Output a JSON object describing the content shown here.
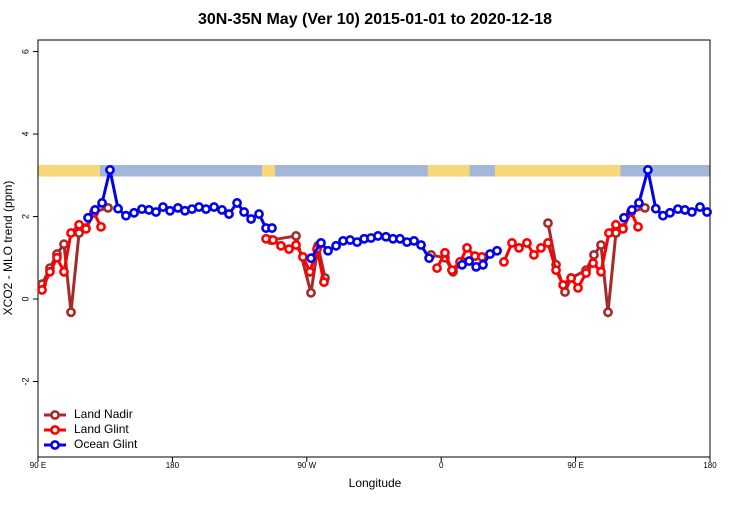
{
  "chart_data": {
    "type": "line",
    "title": "30N-35N May (Ver 10)   2015-01-01 to 2020-12-18",
    "xlabel": "Longitude",
    "ylabel": "XCO2 - MLO trend (ppm)",
    "xlim": [
      90,
      540
    ],
    "ylim": [
      -3.83,
      6.28
    ],
    "xticks": [
      {
        "value": 90,
        "label": "90 E"
      },
      {
        "value": 180,
        "label": "180"
      },
      {
        "value": 270,
        "label": "90 W"
      },
      {
        "value": 360,
        "label": "0"
      },
      {
        "value": 450,
        "label": "90 E"
      },
      {
        "value": 540,
        "label": "180"
      }
    ],
    "yticks": [
      -2,
      0,
      2,
      4,
      6
    ],
    "legend": "bottom-left",
    "surface_band": {
      "ylim": [
        2.97,
        3.25
      ],
      "land_color": "#f7d77a",
      "ocean_color": "#a5b7d8",
      "land": [
        [
          90,
          131.5
        ],
        [
          240,
          248.7
        ],
        [
          351,
          379
        ],
        [
          396,
          480
        ]
      ]
    },
    "series": [
      {
        "name": "Land Nadir",
        "color": "#a52a2a",
        "x": [
          92.7,
          98.0,
          102.7,
          107.4,
          112.1,
          117.5,
          122.1,
          127.5,
          136.9,
          null,
          246.0,
          262.8,
          272.8,
          277.5,
          282.2,
          null,
          353.2,
          362.5,
          367.9,
          374.6,
          382.6,
          null,
          431.5,
          436.9,
          442.9,
          447.0,
          457.0,
          462.3,
          467.0,
          471.7,
          477.0,
          481.7,
          487.1,
          496.4
        ],
        "values": [
          0.36,
          0.75,
          1.09,
          1.33,
          -0.32,
          1.6,
          1.72,
          2.11,
          2.21,
          null,
          1.43,
          1.53,
          0.15,
          1.29,
          0.51,
          null,
          1.07,
          1.0,
          0.66,
          0.9,
          1.04,
          null,
          1.84,
          0.83,
          0.17,
          0.51,
          0.7,
          1.07,
          1.31,
          -0.32,
          1.6,
          1.72,
          2.11,
          2.21
        ]
      },
      {
        "name": "Land Glint",
        "color": "#ff0000",
        "x": [
          92.7,
          98.0,
          102.7,
          107.4,
          112.1,
          117.5,
          122.1,
          127.5,
          132.2,
          null,
          242.7,
          247.4,
          252.7,
          258.1,
          262.8,
          267.4,
          272.1,
          276.8,
          281.5,
          null,
          357.2,
          362.5,
          367.2,
          372.6,
          377.3,
          382.6,
          387.3,
          null,
          402.0,
          407.4,
          412.1,
          417.4,
          422.1,
          426.8,
          431.5,
          436.9,
          441.6,
          447.0,
          451.6,
          457.0,
          461.7,
          467.0,
          472.3,
          477.0,
          481.7,
          487.1,
          491.8
        ],
        "values": [
          0.22,
          0.66,
          1.0,
          0.66,
          1.6,
          1.8,
          1.7,
          2.09,
          1.75,
          null,
          1.46,
          1.43,
          1.29,
          1.21,
          1.31,
          1.02,
          0.66,
          1.21,
          0.41,
          null,
          0.75,
          1.12,
          0.7,
          0.9,
          1.24,
          1.04,
          1.02,
          null,
          0.9,
          1.36,
          1.24,
          1.36,
          1.07,
          1.24,
          1.36,
          0.7,
          0.34,
          0.51,
          0.27,
          0.63,
          0.87,
          0.66,
          1.6,
          1.8,
          1.7,
          2.11,
          1.75
        ]
      },
      {
        "name": "Ocean Glint",
        "color": "#0000ee",
        "x": [
          123.5,
          128.2,
          132.9,
          138.2,
          143.6,
          148.9,
          154.3,
          159.6,
          164.3,
          169.0,
          173.7,
          178.4,
          183.7,
          188.4,
          193.1,
          197.8,
          202.5,
          207.9,
          213.2,
          217.9,
          223.3,
          228.0,
          232.7,
          238.0,
          242.7,
          246.7,
          null,
          272.8,
          279.5,
          284.2,
          289.6,
          294.3,
          299.0,
          303.7,
          308.4,
          313.0,
          317.7,
          323.0,
          327.7,
          332.4,
          337.1,
          341.8,
          346.5,
          351.9,
          null,
          374.0,
          378.7,
          383.4,
          388.0,
          392.7,
          397.4,
          null,
          482.4,
          487.7,
          492.4,
          498.4,
          503.7,
          508.5,
          513.2,
          518.5,
          523.2,
          527.9,
          533.3,
          538.0
        ],
        "values": [
          1.97,
          2.16,
          2.33,
          3.13,
          2.19,
          2.02,
          2.09,
          2.18,
          2.16,
          2.11,
          2.23,
          2.14,
          2.21,
          2.14,
          2.18,
          2.23,
          2.18,
          2.23,
          2.16,
          2.06,
          2.33,
          2.11,
          1.94,
          2.06,
          1.72,
          1.72,
          null,
          0.99,
          1.36,
          1.17,
          1.29,
          1.41,
          1.43,
          1.38,
          1.46,
          1.48,
          1.53,
          1.51,
          1.46,
          1.46,
          1.38,
          1.41,
          1.31,
          0.99,
          null,
          0.83,
          0.92,
          0.78,
          0.83,
          1.09,
          1.17,
          null,
          1.97,
          2.16,
          2.33,
          3.13,
          2.19,
          2.02,
          2.09,
          2.18,
          2.16,
          2.11,
          2.23,
          2.11
        ]
      }
    ]
  }
}
